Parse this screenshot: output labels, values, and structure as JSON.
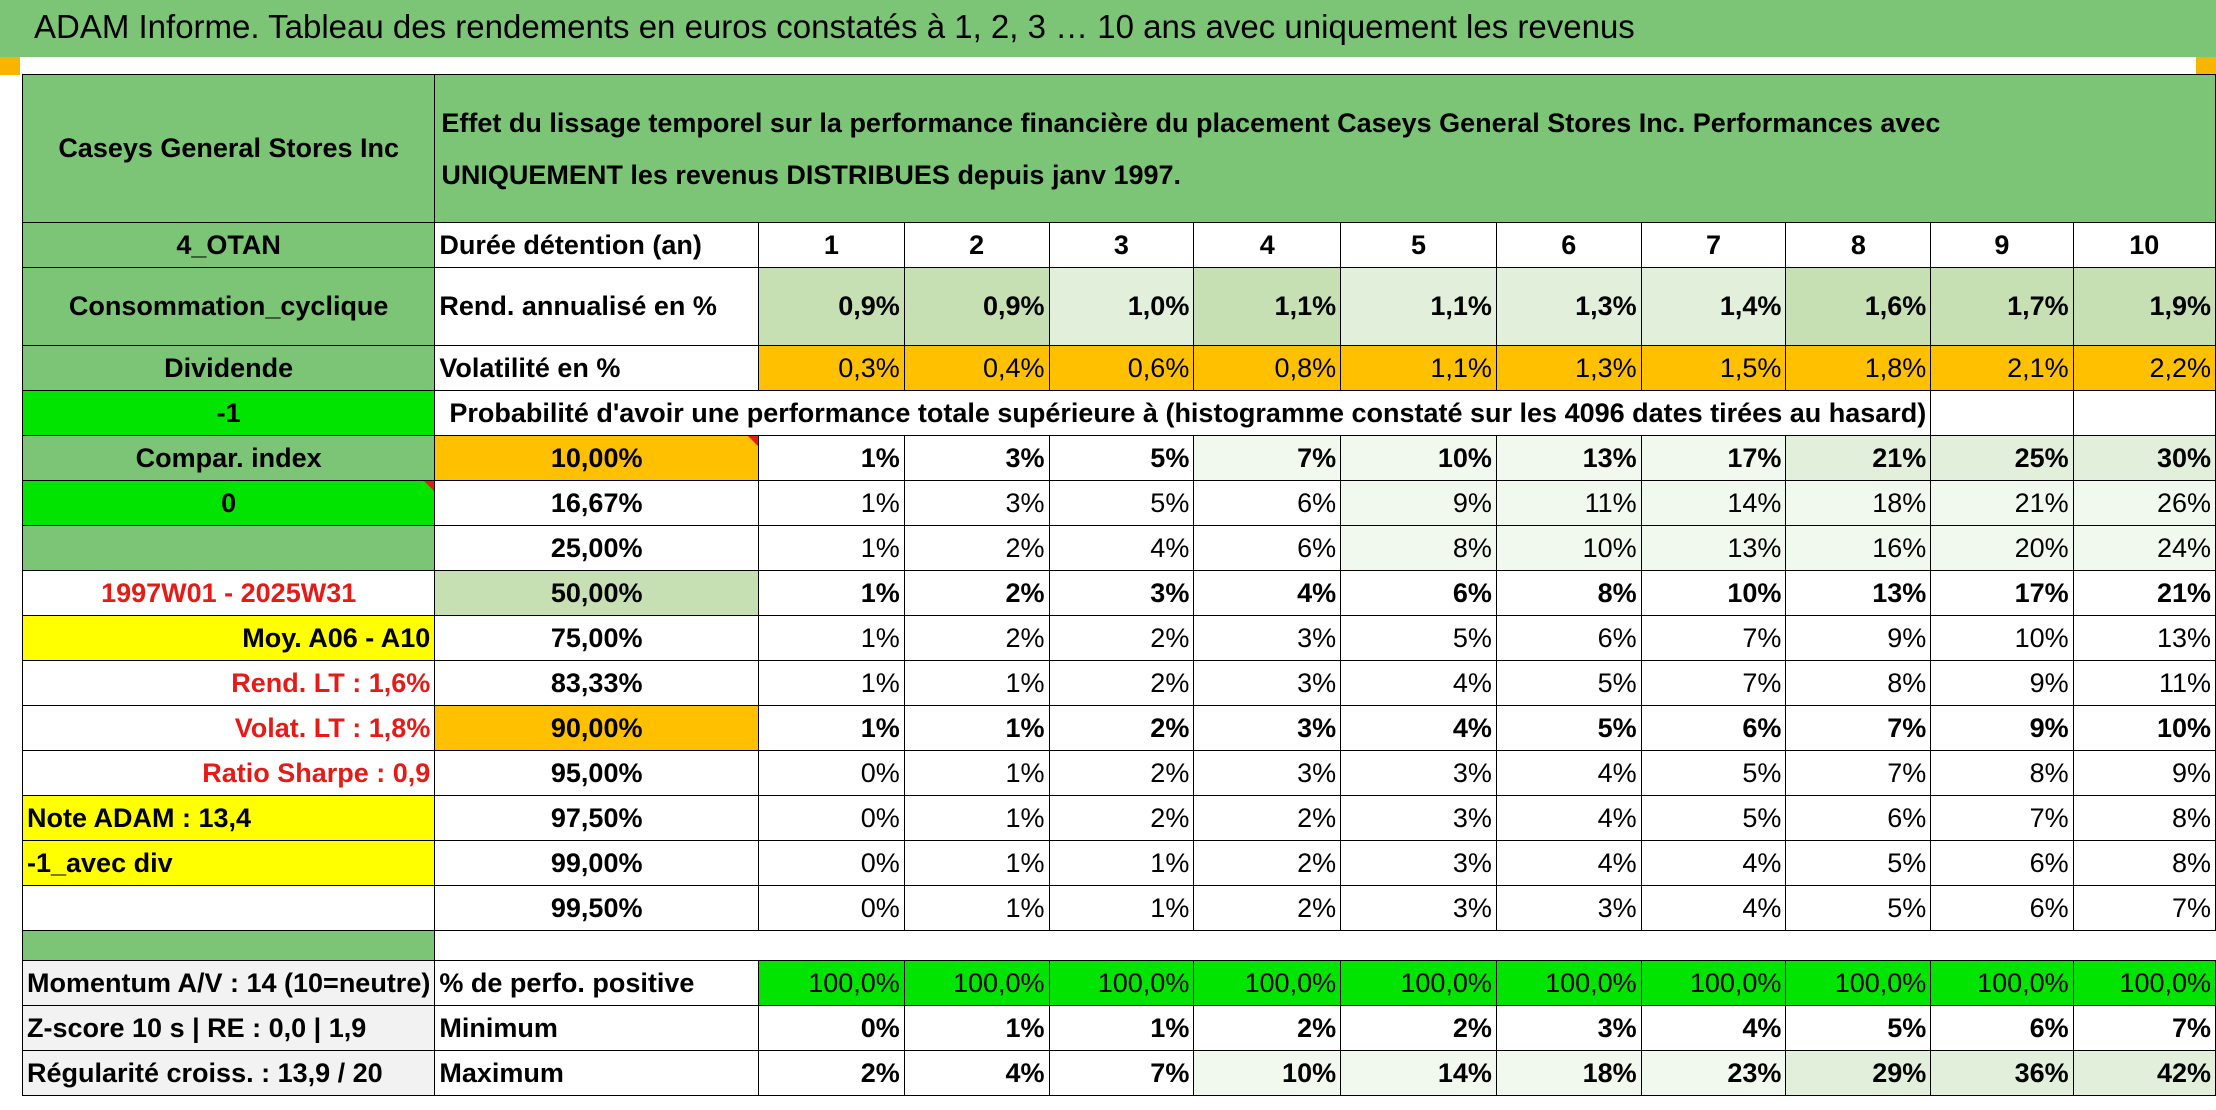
{
  "title": "ADAM Informe. Tableau des rendements en euros constatés à 1, 2, 3 … 10 ans avec uniquement les revenus",
  "company": "Caseys General Stores Inc",
  "description_line1": "Effet du lissage temporel sur la performance financière du placement Caseys General Stores Inc. Performances avec",
  "description_line2": "UNIQUEMENT les revenus DISTRIBUES depuis janv 1997.",
  "side": {
    "code": "4_OTAN",
    "sector": "Consommation_cyclique",
    "dividend": "Dividende",
    "minus_one": "-1",
    "compar_index": "Compar. index",
    "zero": "0",
    "period": "1997W01 - 2025W31",
    "moy": "Moy. A06 - A10",
    "rend_lt": "Rend. LT :   1,6%",
    "volat_lt": "Volat. LT :   1,8%",
    "sharpe": "Ratio Sharpe :    0,9",
    "note": "Note ADAM : 13,4",
    "avec_div": "-1_avec div",
    "momentum": "Momentum A/V : 14 (10=neutre)",
    "zscore": "Z-score 10 s | RE : 0,0 | 1,9",
    "regularite": "Régularité croiss. : 13,9 / 20"
  },
  "labels": {
    "duree": "Durée détention (an)",
    "rend": "Rend. annualisé en %",
    "vol": "Volatilité en %",
    "proba": "Probabilité d'avoir une performance totale supérieure à (histogramme constaté sur les 4096 dates tirées au hasard)",
    "pos": "% de perfo. positive",
    "min": "Minimum",
    "max": "Maximum"
  },
  "years": [
    "1",
    "2",
    "3",
    "4",
    "5",
    "6",
    "7",
    "8",
    "9",
    "10"
  ],
  "rend": [
    "0,9%",
    "0,9%",
    "1,0%",
    "1,1%",
    "1,1%",
    "1,3%",
    "1,4%",
    "1,6%",
    "1,7%",
    "1,9%"
  ],
  "vol": [
    "0,3%",
    "0,4%",
    "0,6%",
    "0,8%",
    "1,1%",
    "1,3%",
    "1,5%",
    "1,8%",
    "2,1%",
    "2,2%"
  ],
  "prob_rows": [
    {
      "p": "10,00%",
      "v": [
        "1%",
        "3%",
        "5%",
        "7%",
        "10%",
        "13%",
        "17%",
        "21%",
        "25%",
        "30%"
      ]
    },
    {
      "p": "16,67%",
      "v": [
        "1%",
        "3%",
        "5%",
        "6%",
        "9%",
        "11%",
        "14%",
        "18%",
        "21%",
        "26%"
      ]
    },
    {
      "p": "25,00%",
      "v": [
        "1%",
        "2%",
        "4%",
        "6%",
        "8%",
        "10%",
        "13%",
        "16%",
        "20%",
        "24%"
      ]
    },
    {
      "p": "50,00%",
      "v": [
        "1%",
        "2%",
        "3%",
        "4%",
        "6%",
        "8%",
        "10%",
        "13%",
        "17%",
        "21%"
      ]
    },
    {
      "p": "75,00%",
      "v": [
        "1%",
        "2%",
        "2%",
        "3%",
        "5%",
        "6%",
        "7%",
        "9%",
        "10%",
        "13%"
      ]
    },
    {
      "p": "83,33%",
      "v": [
        "1%",
        "1%",
        "2%",
        "3%",
        "4%",
        "5%",
        "7%",
        "8%",
        "9%",
        "11%"
      ]
    },
    {
      "p": "90,00%",
      "v": [
        "1%",
        "1%",
        "2%",
        "3%",
        "4%",
        "5%",
        "6%",
        "7%",
        "9%",
        "10%"
      ]
    },
    {
      "p": "95,00%",
      "v": [
        "0%",
        "1%",
        "2%",
        "3%",
        "3%",
        "4%",
        "5%",
        "7%",
        "8%",
        "9%"
      ]
    },
    {
      "p": "97,50%",
      "v": [
        "0%",
        "1%",
        "2%",
        "2%",
        "3%",
        "4%",
        "5%",
        "6%",
        "7%",
        "8%"
      ]
    },
    {
      "p": "99,00%",
      "v": [
        "0%",
        "1%",
        "1%",
        "2%",
        "3%",
        "4%",
        "4%",
        "5%",
        "6%",
        "8%"
      ]
    },
    {
      "p": "99,50%",
      "v": [
        "0%",
        "1%",
        "1%",
        "2%",
        "3%",
        "3%",
        "4%",
        "5%",
        "6%",
        "7%"
      ]
    }
  ],
  "pos": [
    "100,0%",
    "100,0%",
    "100,0%",
    "100,0%",
    "100,0%",
    "100,0%",
    "100,0%",
    "100,0%",
    "100,0%",
    "100,0%"
  ],
  "min": [
    "0%",
    "1%",
    "1%",
    "2%",
    "2%",
    "3%",
    "4%",
    "5%",
    "6%",
    "7%"
  ],
  "max": [
    "2%",
    "4%",
    "7%",
    "10%",
    "14%",
    "18%",
    "23%",
    "29%",
    "36%",
    "42%"
  ]
}
